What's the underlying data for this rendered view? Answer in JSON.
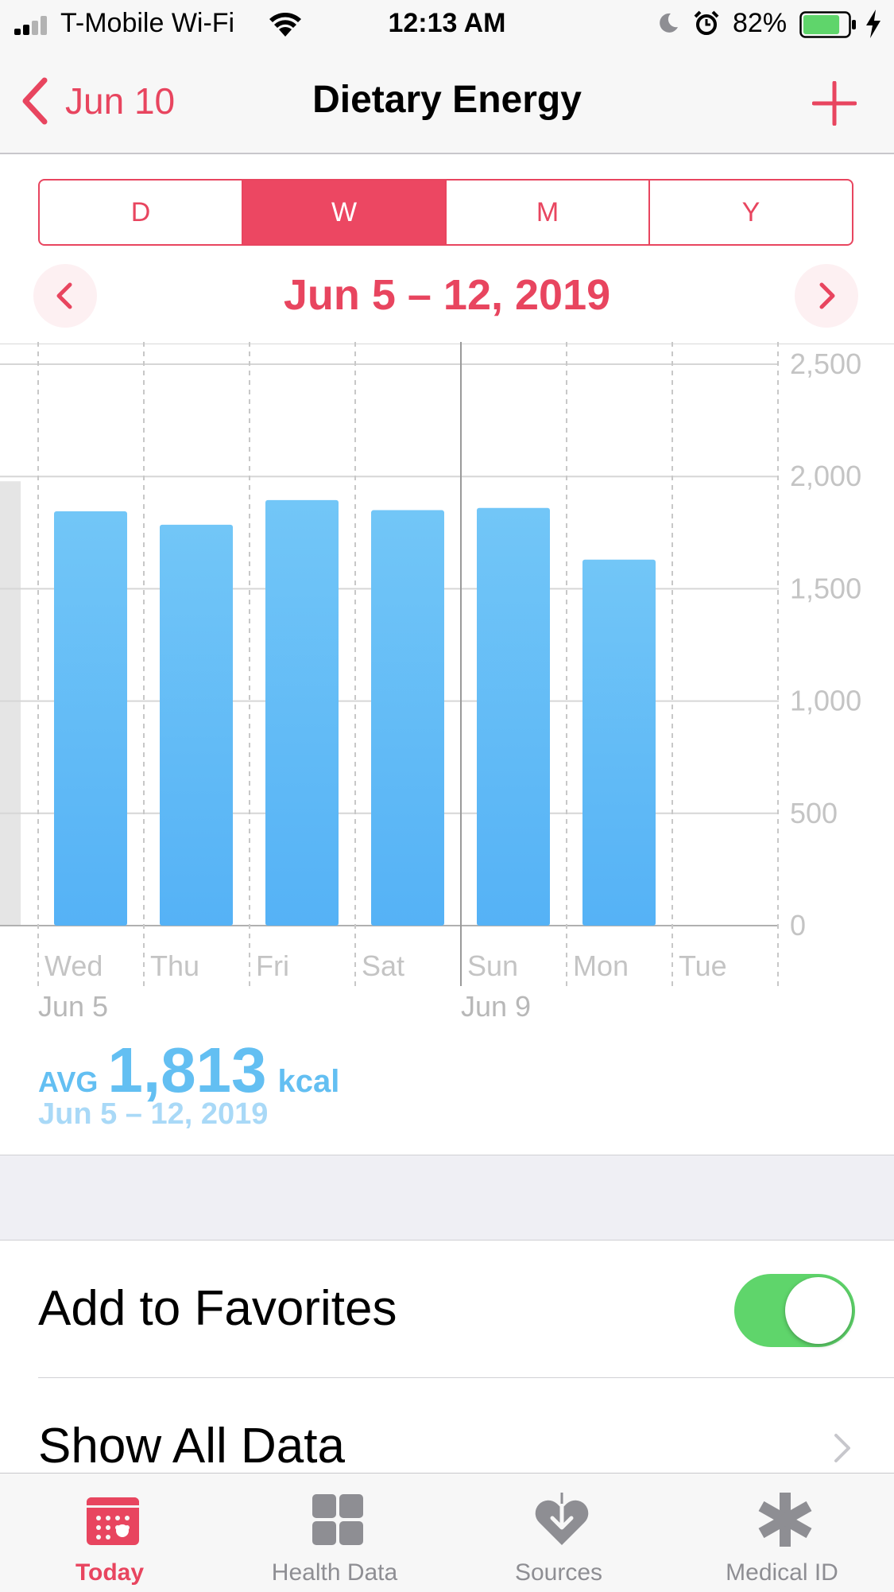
{
  "status_bar": {
    "carrier": "T-Mobile Wi-Fi",
    "time": "12:13 AM",
    "battery": "82%",
    "battery_level": 0.82
  },
  "nav": {
    "back_label": "Jun 10",
    "title": "Dietary Energy",
    "add_icon": "plus-icon"
  },
  "segments": [
    {
      "label": "D",
      "active": false
    },
    {
      "label": "W",
      "active": true
    },
    {
      "label": "M",
      "active": false
    },
    {
      "label": "Y",
      "active": false
    }
  ],
  "range_title": "Jun 5 – 12, 2019",
  "chart_data": {
    "type": "bar",
    "categories": [
      "Wed",
      "Thu",
      "Fri",
      "Sat",
      "Sun",
      "Mon",
      "Tue"
    ],
    "date_labels": {
      "Wed": "Jun 5",
      "Sun": "Jun 9"
    },
    "values": [
      1845,
      1785,
      1895,
      1850,
      1860,
      1630,
      null
    ],
    "ylim": [
      0,
      2500
    ],
    "yticks": [
      "2,500",
      "2,000",
      "1,500",
      "1,000",
      "500",
      "0"
    ],
    "ytick_values": [
      2500,
      2000,
      1500,
      1000,
      500,
      0
    ],
    "bar_color": "#5fb8f5",
    "grid": true
  },
  "average": {
    "label": "AVG",
    "value": "1,813",
    "unit": "kcal",
    "range": "Jun 5 – 12, 2019"
  },
  "rows": {
    "favorites_label": "Add to Favorites",
    "favorites_on": true,
    "show_all_label": "Show All Data"
  },
  "tabs": [
    {
      "label": "Today",
      "icon": "calendar-icon",
      "active": true
    },
    {
      "label": "Health Data",
      "icon": "grid-icon",
      "active": false
    },
    {
      "label": "Sources",
      "icon": "heart-download-icon",
      "active": false
    },
    {
      "label": "Medical ID",
      "icon": "asterisk-icon",
      "active": false
    }
  ],
  "colors": {
    "accent": "#e8455f",
    "chart_blue": "#5fb8f5",
    "toggle_green": "#5fd56b"
  }
}
